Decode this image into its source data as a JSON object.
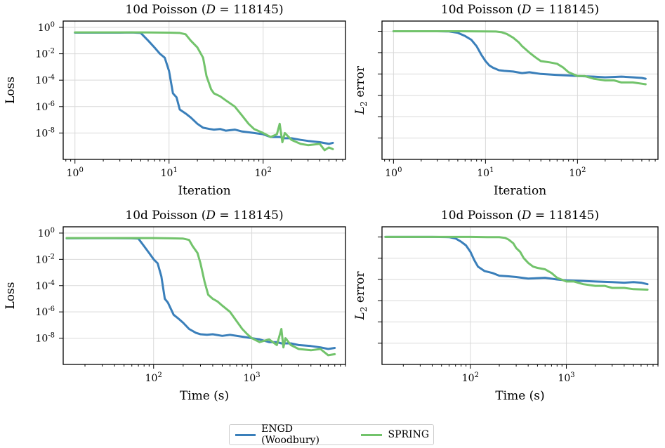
{
  "legend": {
    "items": [
      {
        "label": "ENGD (Woodbury)",
        "color": "#3a7fba"
      },
      {
        "label": "SPRING",
        "color": "#72c36b"
      }
    ]
  },
  "chart_data": [
    {
      "type": "line",
      "title": "10d Poisson (D = 118145)",
      "title_parts": {
        "prefix": "10d Poisson (",
        "var": "D",
        "suffix": " = 118145)"
      },
      "xlabel": "Iteration",
      "ylabel": "Loss",
      "xscale": "log",
      "yscale": "log",
      "xlim": [
        0.75,
        750
      ],
      "ylim": [
        1e-10,
        3
      ],
      "xticks": [
        1,
        10,
        100
      ],
      "xtick_labels": [
        "10^0",
        "10^1",
        "10^2"
      ],
      "yticks": [
        1,
        0.01,
        0.0001,
        1e-06,
        1e-08
      ],
      "ytick_labels": [
        "10^0",
        "10^-2",
        "10^-4",
        "10^-6",
        "10^-8"
      ],
      "grid": true,
      "series": [
        {
          "name": "ENGD (Woodbury)",
          "color": "#3a7fba",
          "x": [
            1,
            2,
            3,
            4,
            5,
            6,
            7,
            8,
            9,
            10,
            11,
            12,
            13,
            15,
            17,
            20,
            23,
            27,
            30,
            35,
            40,
            50,
            60,
            80,
            100,
            120,
            150,
            170,
            200,
            250,
            300,
            400,
            500,
            550
          ],
          "y": [
            0.4,
            0.4,
            0.4,
            0.41,
            0.38,
            0.1,
            0.03,
            0.01,
            0.005,
            0.0005,
            1e-05,
            5e-06,
            6e-07,
            3e-07,
            1.5e-07,
            5e-08,
            2.5e-08,
            2e-08,
            1.8e-08,
            2e-08,
            1.5e-08,
            1.8e-08,
            1.3e-08,
            1e-08,
            8e-09,
            5e-09,
            5e-09,
            4e-09,
            4e-09,
            3e-09,
            2.5e-09,
            2e-09,
            1.5e-09,
            1.8e-09
          ]
        },
        {
          "name": "SPRING",
          "color": "#72c36b",
          "x": [
            1,
            2,
            5,
            10,
            13,
            15,
            17,
            20,
            23,
            25,
            28,
            30,
            35,
            40,
            50,
            60,
            70,
            80,
            100,
            120,
            140,
            150,
            160,
            170,
            200,
            250,
            300,
            400,
            450,
            500,
            550
          ],
          "y": [
            0.42,
            0.42,
            0.42,
            0.4,
            0.38,
            0.3,
            0.1,
            0.03,
            0.005,
            0.0002,
            2e-05,
            1e-05,
            6e-06,
            3e-06,
            1e-06,
            2e-07,
            5e-08,
            2e-08,
            1e-08,
            5e-09,
            8e-09,
            5e-08,
            2e-09,
            1e-08,
            3e-09,
            1.5e-09,
            1.2e-09,
            1.5e-09,
            5e-10,
            8e-10,
            6e-10
          ]
        }
      ]
    },
    {
      "type": "line",
      "title": "10d Poisson (D = 118145)",
      "title_parts": {
        "prefix": "10d Poisson (",
        "var": "D",
        "suffix": " = 118145)"
      },
      "xlabel": "Iteration",
      "ylabel": "L2 error",
      "ylabel_parts": {
        "var": "L",
        "sub": "2",
        "rest": " error"
      },
      "xscale": "log",
      "yscale": "log",
      "xlim": [
        0.75,
        750
      ],
      "ylim": [
        1e-06,
        3
      ],
      "xticks": [
        1,
        10,
        100
      ],
      "xtick_labels": [
        "10^0",
        "10^1",
        "10^2"
      ],
      "yticks": [
        1,
        0.1,
        0.01,
        0.001,
        0.0001,
        1e-05
      ],
      "ytick_labels": [],
      "grid": true,
      "series": [
        {
          "name": "ENGD (Woodbury)",
          "color": "#3a7fba",
          "x": [
            1,
            2,
            3,
            4,
            5,
            6,
            7,
            8,
            9,
            10,
            11,
            12,
            14,
            16,
            20,
            25,
            30,
            40,
            60,
            80,
            100,
            150,
            200,
            300,
            400,
            500,
            550
          ],
          "y": [
            1,
            1,
            1,
            0.98,
            0.85,
            0.6,
            0.4,
            0.2,
            0.08,
            0.04,
            0.025,
            0.02,
            0.015,
            0.014,
            0.013,
            0.011,
            0.012,
            0.01,
            0.009,
            0.0085,
            0.008,
            0.0075,
            0.007,
            0.0075,
            0.007,
            0.0065,
            0.006
          ]
        },
        {
          "name": "SPRING",
          "color": "#72c36b",
          "x": [
            1,
            2,
            5,
            10,
            13,
            15,
            17,
            20,
            23,
            25,
            30,
            35,
            40,
            50,
            60,
            70,
            80,
            100,
            120,
            150,
            200,
            250,
            300,
            400,
            500,
            550
          ],
          "y": [
            1,
            1,
            1,
            0.98,
            0.97,
            0.9,
            0.75,
            0.5,
            0.3,
            0.2,
            0.1,
            0.06,
            0.04,
            0.035,
            0.03,
            0.02,
            0.012,
            0.008,
            0.008,
            0.006,
            0.005,
            0.005,
            0.004,
            0.004,
            0.0035,
            0.0033
          ]
        }
      ]
    },
    {
      "type": "line",
      "title": "10d Poisson (D = 118145)",
      "title_parts": {
        "prefix": "10d Poisson (",
        "var": "D",
        "suffix": " = 118145)"
      },
      "xlabel": "Time (s)",
      "ylabel": "Loss",
      "xscale": "log",
      "yscale": "log",
      "xlim": [
        12,
        9000
      ],
      "ylim": [
        1e-10,
        3
      ],
      "xticks": [
        100,
        1000
      ],
      "xtick_labels": [
        "10^2",
        "10^3"
      ],
      "yticks": [
        1,
        0.01,
        0.0001,
        1e-06,
        1e-08
      ],
      "ytick_labels": [
        "10^0",
        "10^-2",
        "10^-4",
        "10^-6",
        "10^-8"
      ],
      "grid": true,
      "series": [
        {
          "name": "ENGD (Woodbury)",
          "color": "#3a7fba",
          "x": [
            13,
            40,
            60,
            70,
            80,
            90,
            100,
            110,
            120,
            130,
            140,
            160,
            180,
            200,
            230,
            270,
            300,
            350,
            400,
            500,
            600,
            800,
            1000,
            1200,
            1500,
            1800,
            2000,
            2500,
            3000,
            4000,
            5000,
            6000,
            7000
          ],
          "y": [
            0.4,
            0.41,
            0.4,
            0.38,
            0.1,
            0.03,
            0.01,
            0.005,
            0.0005,
            1e-05,
            5e-06,
            6e-07,
            3e-07,
            1.5e-07,
            5e-08,
            2.5e-08,
            2e-08,
            1.8e-08,
            2e-08,
            1.5e-08,
            1.8e-08,
            1.3e-08,
            1e-08,
            8e-09,
            5e-09,
            5e-09,
            4e-09,
            4e-09,
            3e-09,
            2.5e-09,
            2e-09,
            1.5e-09,
            1.8e-09
          ]
        },
        {
          "name": "SPRING",
          "color": "#72c36b",
          "x": [
            13,
            60,
            100,
            150,
            200,
            230,
            250,
            280,
            300,
            330,
            360,
            400,
            450,
            500,
            600,
            700,
            800,
            900,
            1000,
            1200,
            1500,
            1800,
            2000,
            2100,
            2200,
            2500,
            3000,
            4000,
            5000,
            6000,
            7000
          ],
          "y": [
            0.42,
            0.42,
            0.42,
            0.4,
            0.38,
            0.3,
            0.1,
            0.03,
            0.005,
            0.0002,
            2e-05,
            1e-05,
            6e-06,
            3e-06,
            1e-06,
            2e-07,
            5e-08,
            2e-08,
            1e-08,
            5e-09,
            8e-09,
            3e-09,
            5e-08,
            2e-09,
            1e-08,
            3e-09,
            1.5e-09,
            1.2e-09,
            1.5e-09,
            5e-10,
            6e-10
          ]
        }
      ]
    },
    {
      "type": "line",
      "title": "10d Poisson (D = 118145)",
      "title_parts": {
        "prefix": "10d Poisson (",
        "var": "D",
        "suffix": " = 118145)"
      },
      "xlabel": "Time (s)",
      "ylabel": "L2 error",
      "ylabel_parts": {
        "var": "L",
        "sub": "2",
        "rest": " error"
      },
      "xscale": "log",
      "yscale": "log",
      "xlim": [
        12,
        9000
      ],
      "ylim": [
        1e-06,
        3
      ],
      "xticks": [
        100,
        1000
      ],
      "xtick_labels": [
        "10^2",
        "10^3"
      ],
      "yticks": [
        1,
        0.1,
        0.01,
        0.001,
        0.0001,
        1e-05
      ],
      "ytick_labels": [],
      "grid": true,
      "series": [
        {
          "name": "ENGD (Woodbury)",
          "color": "#3a7fba",
          "x": [
            13,
            40,
            60,
            70,
            80,
            90,
            100,
            110,
            120,
            140,
            170,
            200,
            250,
            300,
            400,
            600,
            800,
            1000,
            1500,
            2000,
            3000,
            4000,
            5000,
            6000,
            7000
          ],
          "y": [
            1,
            1,
            0.98,
            0.85,
            0.6,
            0.4,
            0.2,
            0.08,
            0.04,
            0.025,
            0.02,
            0.015,
            0.014,
            0.013,
            0.011,
            0.012,
            0.01,
            0.009,
            0.0085,
            0.008,
            0.0075,
            0.007,
            0.0075,
            0.007,
            0.006
          ]
        },
        {
          "name": "SPRING",
          "color": "#72c36b",
          "x": [
            13,
            60,
            100,
            150,
            200,
            230,
            250,
            280,
            300,
            330,
            360,
            400,
            450,
            500,
            600,
            700,
            800,
            1000,
            1200,
            1500,
            2000,
            2500,
            3000,
            4000,
            5000,
            7000
          ],
          "y": [
            1,
            1,
            1,
            0.98,
            0.97,
            0.9,
            0.75,
            0.5,
            0.3,
            0.2,
            0.1,
            0.06,
            0.04,
            0.035,
            0.03,
            0.02,
            0.012,
            0.008,
            0.008,
            0.006,
            0.005,
            0.005,
            0.004,
            0.004,
            0.0035,
            0.0033
          ]
        }
      ]
    }
  ]
}
